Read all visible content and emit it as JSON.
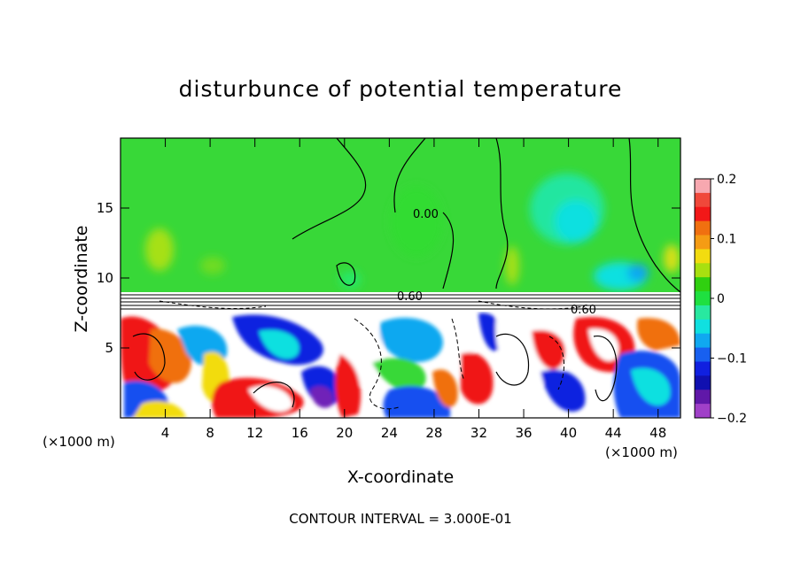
{
  "chart_data": {
    "type": "heatmap",
    "title": "disturbunce of potential temperature",
    "xlabel": "X-coordinate",
    "ylabel": "Z-coordinate",
    "x_unit_label": "(×1000 m)",
    "xlim": [
      0,
      50
    ],
    "ylim": [
      0,
      20
    ],
    "x_ticks": [
      4,
      8,
      12,
      16,
      20,
      24,
      28,
      32,
      36,
      40,
      44,
      48
    ],
    "y_ticks": [
      5,
      10,
      15
    ],
    "colorbar": {
      "range": [
        -0.2,
        0.2
      ],
      "tick_values": [
        0.2,
        0.1,
        0,
        -0.1,
        -0.2
      ],
      "tick_labels": [
        "0.2",
        "0.1",
        "0",
        "−0.1",
        "−0.2"
      ],
      "colors": [
        "#f7a8b0",
        "#f0483a",
        "#f21818",
        "#f07010",
        "#f59c14",
        "#f2dc10",
        "#a8e010",
        "#30d010",
        "#1fe040",
        "#28e8a0",
        "#10e0e0",
        "#10a8f0",
        "#1860f0",
        "#1020e0",
        "#1010b0",
        "#6018a8",
        "#a040c8"
      ]
    },
    "contour_interval_label": "CONTOUR INTERVAL = 3.000E-01",
    "contour_labels": [
      "0.00",
      "0.60",
      "0.60"
    ]
  },
  "colors": {
    "background_field": "#38d838",
    "positive_strong": "#f01818",
    "negative_strong": "#1020e0"
  }
}
